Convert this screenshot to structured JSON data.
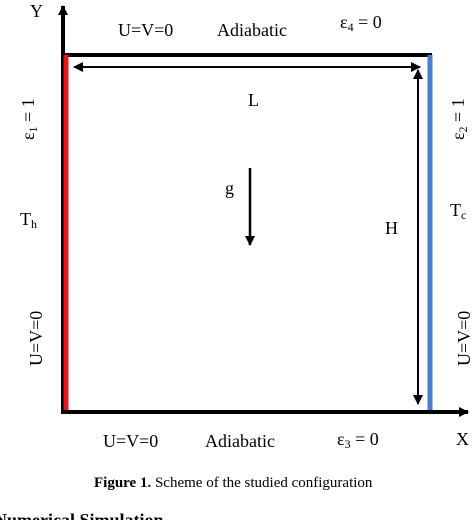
{
  "axes": {
    "y": "Y",
    "x": "X"
  },
  "top_wall": {
    "velocity": "U=V=0",
    "condition": "Adiabatic",
    "emissivity": {
      "base": "ε",
      "sub": "4",
      "tail": " = 0"
    }
  },
  "bottom_wall": {
    "velocity": "U=V=0",
    "condition": "Adiabatic",
    "emissivity": {
      "base": "ε",
      "sub": "3",
      "tail": " = 0"
    }
  },
  "left_wall": {
    "emissivity": {
      "base": "ε",
      "sub": "1",
      "tail": " = 1"
    },
    "temperature": {
      "base": "T",
      "sub": "h"
    },
    "velocity": "U=V=0"
  },
  "right_wall": {
    "emissivity": {
      "base": "ε",
      "sub": "2",
      "tail": " = 1"
    },
    "temperature": {
      "base": "T",
      "sub": "c"
    },
    "velocity": "U=V=0"
  },
  "dimensions": {
    "length": "L",
    "height": "H",
    "gravity": "g"
  },
  "caption": {
    "label": "Figure 1.",
    "text": " Scheme of the studied configuration"
  },
  "next_heading": "Numerical Simulation"
}
